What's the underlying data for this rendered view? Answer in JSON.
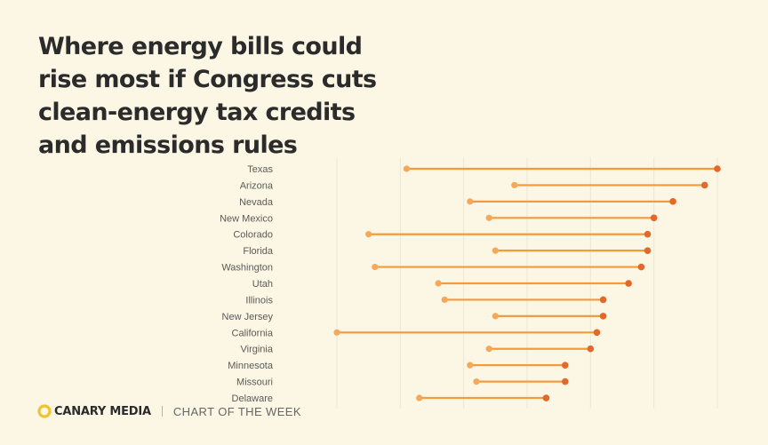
{
  "title": "Where energy bills could rise most if Congress cuts clean-energy tax credits and emissions rules",
  "footer": {
    "brand": "CANARY MEDIA",
    "tagline": "CHART OF THE WEEK"
  },
  "colors": {
    "line": "#f39a3a",
    "start_dot": "#f6a85a",
    "end_dot": "#e2692a",
    "label": "#5a5a5a",
    "grid": "#ece7d2",
    "title": "#2b2b2b",
    "logo": "#f2c232"
  },
  "chart_data": {
    "type": "dumbbell",
    "title": "Where energy bills could rise most if Congress cuts clean-energy tax credits and emissions rules",
    "xlabel": "",
    "ylabel": "",
    "xlim": [
      0,
      60
    ],
    "grid": true,
    "categories": [
      "Texas",
      "Arizona",
      "Nevada",
      "New Mexico",
      "Colorado",
      "Florida",
      "Washington",
      "Utah",
      "Illinois",
      "New Jersey",
      "California",
      "Virginia",
      "Minnesota",
      "Missouri",
      "Delaware"
    ],
    "series": [
      {
        "name": "start",
        "values": [
          11,
          28,
          21,
          24,
          5,
          25,
          6,
          16,
          17,
          25,
          0,
          24,
          21,
          22,
          13
        ]
      },
      {
        "name": "end",
        "values": [
          60,
          58,
          53,
          50,
          49,
          49,
          48,
          46,
          42,
          42,
          41,
          40,
          36,
          36,
          33
        ]
      }
    ]
  }
}
